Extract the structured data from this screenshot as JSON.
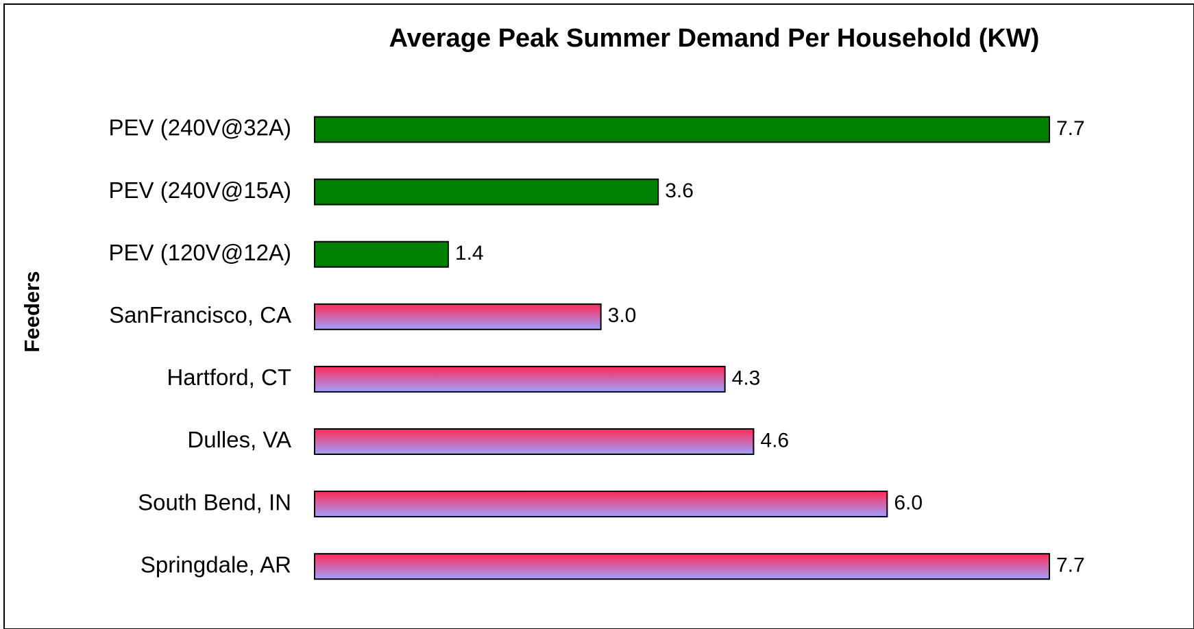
{
  "chart_data": {
    "type": "barh",
    "title": "Average Peak Summer Demand Per Household (KW)",
    "y_label": "Feeders",
    "categories": [
      "PEV (240V@32A)",
      "PEV (240V@15A)",
      "PEV (120V@12A)",
      "SanFrancisco, CA",
      "Hartford, CT",
      "Dulles, VA",
      "South Bend, IN",
      "Springdale, AR"
    ],
    "values": [
      7.7,
      3.6,
      1.4,
      3.0,
      4.3,
      4.6,
      6.0,
      7.7
    ],
    "value_labels": [
      "7.7",
      "3.6",
      "1.4",
      "3.0",
      "4.3",
      "4.6",
      "6.0",
      "7.7"
    ],
    "colors": [
      [
        "#008000",
        "#008000"
      ],
      [
        "#008000",
        "#008000"
      ],
      [
        "#008000",
        "#008000"
      ],
      [
        "#ff2a55",
        "#a0a0ff"
      ],
      [
        "#ff2a55",
        "#a0a0ff"
      ],
      [
        "#ff2a55",
        "#a0a0ff"
      ],
      [
        "#ff2a55",
        "#a0a0ff"
      ],
      [
        "#ff2a55",
        "#a0a0ff"
      ]
    ]
  }
}
